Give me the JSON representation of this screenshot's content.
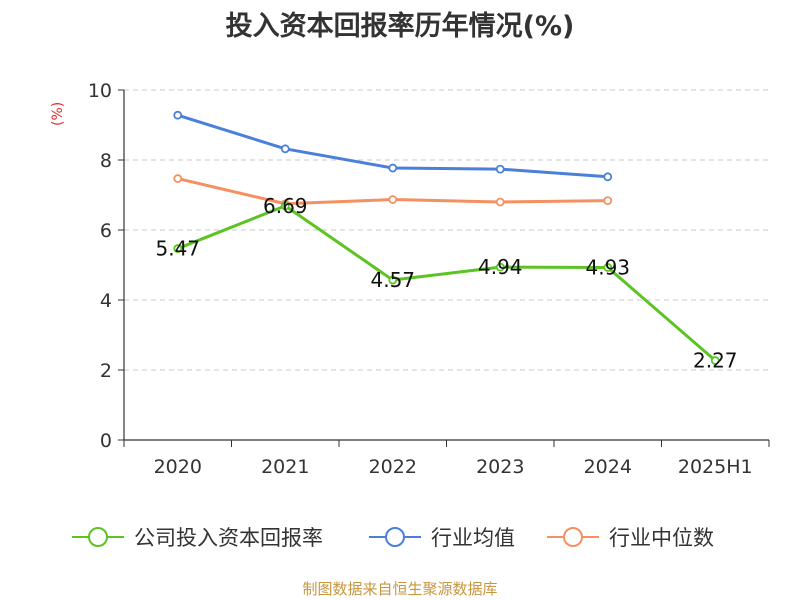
{
  "chart_data": {
    "type": "line",
    "title": "投入资本回报率历年情况(%)",
    "ylabel": "(%)",
    "categories": [
      "2020",
      "2021",
      "2022",
      "2023",
      "2024",
      "2025H1"
    ],
    "ylim": [
      0,
      10
    ],
    "yticks": [
      0,
      2,
      4,
      6,
      8,
      10
    ],
    "grid": true,
    "legend_position": "bottom",
    "series": [
      {
        "name": "公司投入资本回报率",
        "color": "#5bc423",
        "values": [
          5.47,
          6.69,
          4.57,
          4.94,
          4.93,
          2.27
        ],
        "labels": [
          "5.47",
          "6.69",
          "4.57",
          "4.94",
          "4.93",
          "2.27"
        ]
      },
      {
        "name": "行业均值",
        "color": "#4a7fdb",
        "values": [
          9.28,
          8.32,
          7.77,
          7.74,
          7.52,
          null
        ]
      },
      {
        "name": "行业中位数",
        "color": "#f59160",
        "values": [
          7.47,
          6.75,
          6.87,
          6.8,
          6.84,
          null
        ]
      }
    ]
  },
  "footer": {
    "source": "制图数据来自恒生聚源数据库"
  }
}
